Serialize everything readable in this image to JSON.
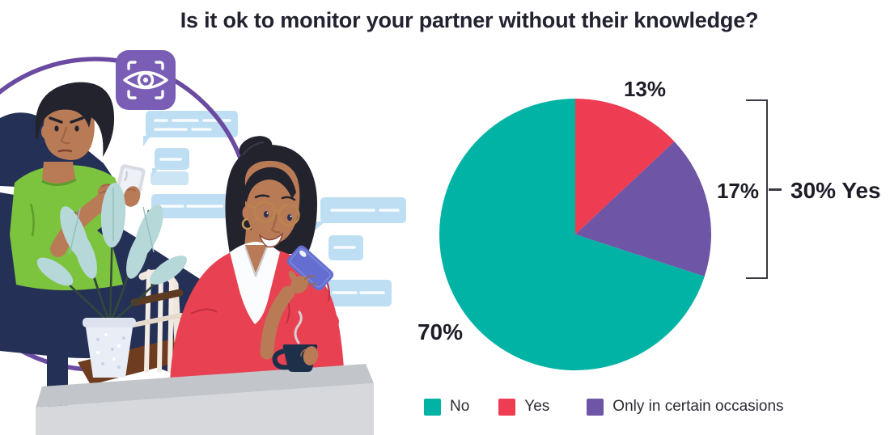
{
  "title": "Is it ok to monitor your partner without their knowledge?",
  "chart_data": {
    "type": "pie",
    "title": "Is it ok to monitor your partner without their knowledge?",
    "slices": [
      {
        "label": "Yes",
        "value": 13,
        "pct_label": "13%",
        "color": "#ee3c52"
      },
      {
        "label": "Only in certain occasions",
        "value": 17,
        "pct_label": "17%",
        "color": "#6e55a6"
      },
      {
        "label": "No",
        "value": 70,
        "pct_label": "70%",
        "color": "#00b3a4"
      }
    ],
    "start_angle_deg": 0,
    "direction": "clockwise",
    "legend": [
      {
        "label": "No",
        "color": "#00b3a4"
      },
      {
        "label": "Yes",
        "color": "#ee3c52"
      },
      {
        "label": "Only in certain occasions",
        "color": "#6e55a6"
      }
    ],
    "legend_position": "bottom",
    "annotation": {
      "text": "30% Yes",
      "grouped_slices": [
        "Yes",
        "Only in certain occasions"
      ],
      "grouped_total_pct": 30
    }
  },
  "illustration": {
    "icons": [
      "eye-icon"
    ],
    "accent_colors": {
      "circle_purple": "#6b4ba1",
      "badge_purple": "#7a5db5",
      "bubble_blue": "#bedff3"
    }
  }
}
